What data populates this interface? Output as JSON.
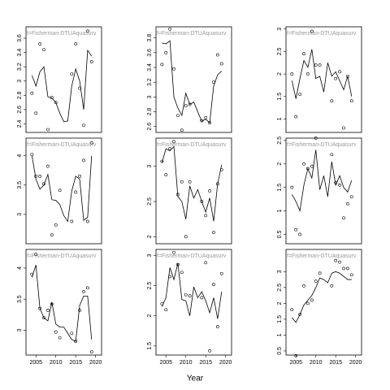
{
  "x_label": "Year",
  "chart_data": [
    {
      "type": "line",
      "strip": "f=Fisherman-DTUAquasurv",
      "x": [
        2004,
        2005,
        2006,
        2007,
        2008,
        2009,
        2010,
        2011,
        2012,
        2013,
        2014,
        2015,
        2016,
        2017,
        2018,
        2019
      ],
      "xlim": [
        2002.5,
        2021.5
      ],
      "ylim": [
        2.28,
        3.76
      ],
      "yticks": [
        2.4,
        2.6,
        2.8,
        3.0,
        3.2,
        3.4,
        3.6
      ],
      "series": [
        {
          "mark": "line",
          "color": "#000000",
          "values": [
            3.08,
            2.93,
            3.13,
            3.2,
            2.78,
            2.76,
            2.7,
            2.55,
            2.43,
            2.44,
            2.93,
            3.17,
            3.0,
            2.6,
            3.43,
            3.35
          ]
        },
        {
          "mark": "points",
          "color": "#000000",
          "values": [
            2.83,
            2.55,
            3.52,
            3.44,
            2.32,
            2.77,
            2.7,
            null,
            null,
            null,
            3.1,
            3.52,
            2.9,
            2.38,
            3.7,
            3.27
          ]
        }
      ]
    },
    {
      "type": "line",
      "strip": "f=Fisherman-DTUAquasurv",
      "x": [
        2004,
        2005,
        2006,
        2007,
        2008,
        2009,
        2010,
        2011,
        2012,
        2013,
        2014,
        2015,
        2016,
        2017,
        2018,
        2019
      ],
      "xlim": [
        2002.5,
        2021.5
      ],
      "ylim": [
        2.52,
        3.95
      ],
      "yticks": [
        2.6,
        2.8,
        3.0,
        3.2,
        3.4,
        3.6,
        3.8
      ],
      "series": [
        {
          "mark": "line",
          "color": "#000000",
          "values": [
            3.73,
            3.72,
            3.76,
            3.0,
            2.85,
            2.75,
            3.05,
            2.9,
            2.93,
            2.8,
            2.67,
            2.7,
            2.65,
            3.15,
            3.3,
            3.35
          ]
        },
        {
          "mark": "points",
          "color": "#000000",
          "values": [
            3.44,
            3.6,
            3.92,
            3.38,
            2.75,
            2.55,
            2.88,
            2.9,
            null,
            null,
            2.68,
            2.72,
            2.65,
            3.2,
            3.57,
            3.45
          ]
        }
      ]
    },
    {
      "type": "line",
      "strip": "f=Fisherman-DTUAquasurv",
      "x": [
        2004,
        2005,
        2006,
        2007,
        2008,
        2009,
        2010,
        2011,
        2012,
        2013,
        2014,
        2015,
        2016,
        2017,
        2018,
        2019
      ],
      "xlim": [
        2002.5,
        2021.5
      ],
      "ylim": [
        0.7,
        3.05
      ],
      "yticks": [
        1.0,
        1.5,
        2.0,
        2.5,
        3.0
      ],
      "series": [
        {
          "mark": "line",
          "color": "#000000",
          "values": [
            1.85,
            1.45,
            1.9,
            2.3,
            2.15,
            2.55,
            1.9,
            1.95,
            1.6,
            2.25,
            1.95,
            2.05,
            1.85,
            1.65,
            1.95,
            1.5
          ]
        },
        {
          "mark": "points",
          "color": "#000000",
          "values": [
            2.0,
            1.05,
            1.55,
            2.45,
            2.0,
            2.95,
            2.2,
            2.2,
            null,
            null,
            1.4,
            1.9,
            2.05,
            0.8,
            1.95,
            1.4
          ]
        }
      ]
    },
    {
      "type": "line",
      "strip": "f=Fisherman-DTUAquasurv",
      "x": [
        2004,
        2005,
        2006,
        2007,
        2008,
        2009,
        2010,
        2011,
        2012,
        2013,
        2014,
        2015,
        2016,
        2017,
        2018,
        2019
      ],
      "xlim": [
        2002.5,
        2021.5
      ],
      "ylim": [
        2.5,
        4.3
      ],
      "yticks": [
        3.0,
        3.5,
        4.0
      ],
      "series": [
        {
          "mark": "line",
          "color": "#000000",
          "values": [
            4.0,
            3.6,
            3.43,
            3.5,
            3.68,
            3.25,
            3.24,
            3.17,
            2.98,
            2.88,
            3.4,
            3.65,
            3.6,
            2.9,
            2.95,
            4.0
          ]
        },
        {
          "mark": "points",
          "color": "#000000",
          "values": [
            4.02,
            3.65,
            3.65,
            3.52,
            3.82,
            2.65,
            2.82,
            3.41,
            null,
            null,
            2.88,
            3.38,
            3.65,
            3.92,
            2.88,
            4.22
          ]
        }
      ]
    },
    {
      "type": "line",
      "strip": "f=Fisherman-DTUAquasurv",
      "x": [
        2004,
        2005,
        2006,
        2007,
        2008,
        2009,
        2010,
        2011,
        2012,
        2013,
        2014,
        2015,
        2016,
        2017,
        2018,
        2019
      ],
      "xlim": [
        2002.5,
        2021.5
      ],
      "ylim": [
        1.9,
        3.4
      ],
      "yticks": [
        2.0,
        2.5,
        3.0
      ],
      "series": [
        {
          "mark": "line",
          "color": "#000000",
          "values": [
            3.05,
            3.25,
            3.22,
            3.28,
            2.57,
            2.5,
            2.25,
            2.72,
            2.55,
            2.67,
            2.5,
            2.35,
            2.55,
            2.22,
            2.75,
            3.02
          ]
        },
        {
          "mark": "points",
          "color": "#000000",
          "values": [
            3.07,
            2.88,
            3.25,
            3.35,
            2.6,
            2.78,
            2.0,
            2.78,
            null,
            null,
            2.5,
            2.3,
            2.65,
            2.06,
            2.75,
            2.95
          ]
        }
      ]
    },
    {
      "type": "line",
      "strip": "f=Fisherman-DTUAquasurv",
      "x": [
        2004,
        2005,
        2006,
        2007,
        2008,
        2009,
        2010,
        2011,
        2012,
        2013,
        2014,
        2015,
        2016,
        2017,
        2018,
        2019
      ],
      "xlim": [
        2002.5,
        2021.5
      ],
      "ylim": [
        0.3,
        2.55
      ],
      "yticks": [
        0.5,
        1.0,
        1.5,
        2.0,
        2.5
      ],
      "series": [
        {
          "mark": "line",
          "color": "#000000",
          "values": [
            1.35,
            1.2,
            1.0,
            1.55,
            1.9,
            1.7,
            2.3,
            1.45,
            1.75,
            1.3,
            2.05,
            1.55,
            1.75,
            1.5,
            1.4,
            1.65
          ]
        },
        {
          "mark": "points",
          "color": "#000000",
          "values": [
            1.5,
            0.6,
            0.5,
            2.0,
            1.9,
            1.95,
            2.55,
            null,
            null,
            null,
            2.2,
            1.6,
            1.55,
            0.85,
            1.15,
            1.3
          ]
        }
      ]
    },
    {
      "type": "line",
      "strip": "f=Fisherman-DTUAquasurv",
      "x": [
        2004,
        2005,
        2006,
        2007,
        2008,
        2009,
        2010,
        2011,
        2012,
        2013,
        2014,
        2015,
        2016,
        2017,
        2018,
        2019
      ],
      "xlim": [
        2002.5,
        2021.5
      ],
      "ylim": [
        2.6,
        4.3
      ],
      "yticks": [
        3.0,
        3.5,
        4.0
      ],
      "xticks": [
        2005,
        2010,
        2015,
        2020
      ],
      "series": [
        {
          "mark": "line",
          "color": "#000000",
          "values": [
            3.85,
            4.05,
            3.35,
            3.2,
            3.15,
            3.45,
            3.1,
            3.05,
            3.05,
            2.95,
            2.85,
            2.82,
            3.4,
            3.55,
            3.55,
            2.85
          ]
        },
        {
          "mark": "points",
          "color": "#000000",
          "values": [
            3.9,
            4.22,
            3.35,
            3.2,
            3.32,
            3.42,
            2.97,
            2.88,
            null,
            null,
            2.95,
            2.82,
            3.32,
            3.62,
            3.68,
            2.65
          ]
        }
      ]
    },
    {
      "type": "line",
      "strip": "f=Fisherman-DTUAquasurv",
      "x": [
        2004,
        2005,
        2006,
        2007,
        2008,
        2009,
        2010,
        2011,
        2012,
        2013,
        2014,
        2015,
        2016,
        2017,
        2018,
        2019
      ],
      "xlim": [
        2002.5,
        2021.5
      ],
      "ylim": [
        1.35,
        3.1
      ],
      "yticks": [
        1.5,
        2.0,
        2.5,
        3.0
      ],
      "xticks": [
        2005,
        2010,
        2015,
        2020
      ],
      "series": [
        {
          "mark": "line",
          "color": "#000000",
          "values": [
            2.15,
            2.3,
            2.8,
            2.6,
            2.87,
            2.27,
            2.25,
            2.0,
            2.48,
            2.3,
            2.4,
            2.25,
            2.05,
            2.3,
            1.95,
            2.4
          ]
        },
        {
          "mark": "points",
          "color": "#000000",
          "values": [
            2.2,
            2.1,
            2.65,
            3.05,
            2.85,
            2.72,
            2.35,
            2.33,
            null,
            null,
            2.3,
            2.88,
            1.42,
            2.52,
            1.82,
            2.7
          ]
        }
      ]
    },
    {
      "type": "line",
      "strip": "f=Fisherman-DTUAquasurv",
      "x": [
        2004,
        2005,
        2006,
        2007,
        2008,
        2009,
        2010,
        2011,
        2012,
        2013,
        2014,
        2015,
        2016,
        2017,
        2018,
        2019
      ],
      "xlim": [
        2002.5,
        2021.5
      ],
      "ylim": [
        0.37,
        3.7
      ],
      "yticks": [
        0.5,
        1.0,
        1.5,
        2.0,
        2.5,
        3.0
      ],
      "xticks": [
        2005,
        2010,
        2015,
        2020
      ],
      "series": [
        {
          "mark": "line",
          "color": "#000000",
          "values": [
            1.55,
            1.4,
            1.65,
            1.95,
            2.1,
            2.25,
            2.5,
            2.8,
            2.75,
            2.65,
            2.95,
            3.0,
            2.95,
            2.85,
            2.75,
            2.75
          ]
        },
        {
          "mark": "points",
          "color": "#000000",
          "values": [
            1.8,
            0.35,
            1.65,
            2.55,
            2.0,
            2.1,
            2.7,
            2.95,
            null,
            null,
            2.55,
            3.35,
            3.3,
            3.1,
            3.1,
            2.9
          ]
        }
      ]
    }
  ]
}
